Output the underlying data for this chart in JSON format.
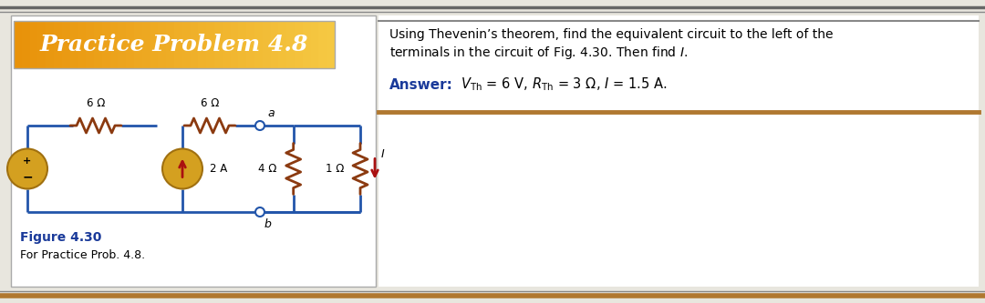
{
  "title": "Practice Problem 4.8",
  "title_bg_left": "#E8920A",
  "title_bg_right": "#F5C842",
  "title_text_color": "#FFFFFF",
  "problem_line1": "Using Thevenin’s theorem, find the equivalent circuit to the left of the",
  "problem_line2": "terminals in the circuit of Fig. 4.30. Then find $I$.",
  "answer_label": "Answer:",
  "answer_text": "$V_{\\mathrm{Th}}$ = 6 V, $R_{\\mathrm{Th}}$ = 3 $\\Omega$, $I$ = 1.5 A.",
  "figure_label": "Figure 4.30",
  "figure_caption": "For Practice Prob. 4.8.",
  "wire_color": "#2255AA",
  "resistor_color": "#8B3A10",
  "source_fill": "#D4A020",
  "source_edge": "#B07010",
  "current_arrow_color": "#AA1010",
  "answer_label_color": "#1A3A9A",
  "figure_label_color": "#1A3A9A",
  "bg_color": "#E8E6DE",
  "panel_bg": "#FFFFFF",
  "top_line1_color": "#666666",
  "top_line2_color": "#888888",
  "bottom_bar_color": "#B07830",
  "separator_color": "#888888",
  "panel_border_color": "#AAAAAA"
}
